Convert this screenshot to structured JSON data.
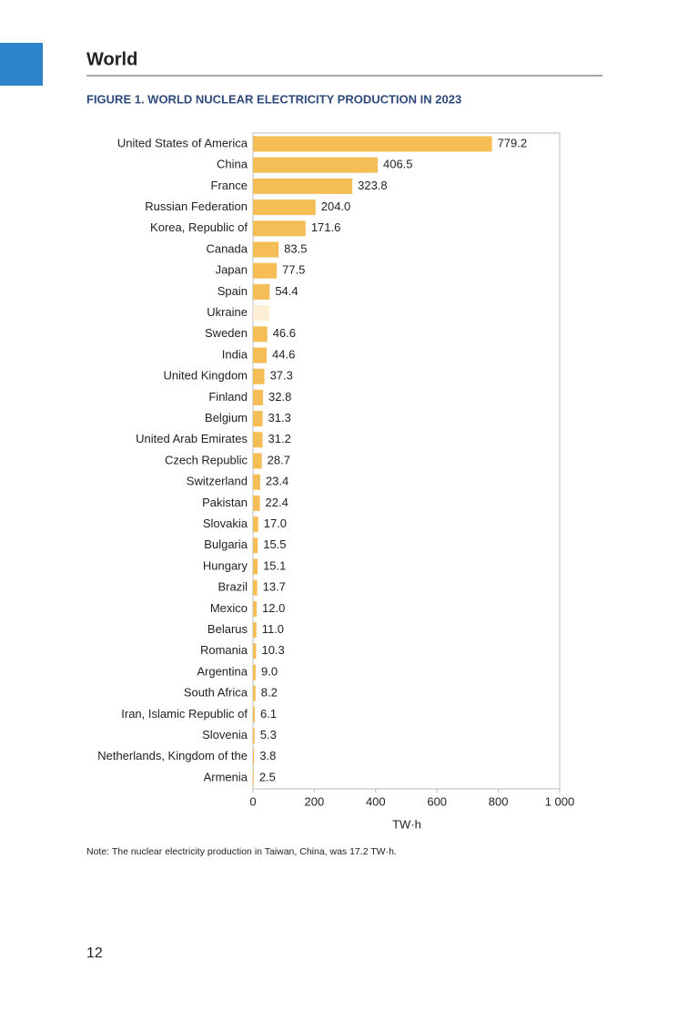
{
  "header": {
    "title": "World"
  },
  "chart_data": {
    "type": "bar",
    "orientation": "horizontal",
    "title": "FIGURE 1. WORLD NUCLEAR ELECTRICITY PRODUCTION IN 2023",
    "categories": [
      "United States of America",
      "China",
      "France",
      "Russian Federation",
      "Korea, Republic of",
      "Canada",
      "Japan",
      "Spain",
      "Ukraine",
      "Sweden",
      "India",
      "United Kingdom",
      "Finland",
      "Belgium",
      "United Arab Emirates",
      "Czech Republic",
      "Switzerland",
      "Pakistan",
      "Slovakia",
      "Bulgaria",
      "Hungary",
      "Brazil",
      "Mexico",
      "Belarus",
      "Romania",
      "Argentina",
      "South Africa",
      "Iran, Islamic Republic of",
      "Slovenia",
      "Netherlands, Kingdom of the",
      "Armenia"
    ],
    "values": [
      779.2,
      406.5,
      323.8,
      204.0,
      171.6,
      83.5,
      77.5,
      54.4,
      53,
      46.6,
      44.6,
      37.3,
      32.8,
      31.3,
      31.2,
      28.7,
      23.4,
      22.4,
      17.0,
      15.5,
      15.1,
      13.7,
      12.0,
      11.0,
      10.3,
      9.0,
      8.2,
      6.1,
      5.3,
      3.8,
      2.5
    ],
    "value_labels": [
      "779.2",
      "406.5",
      "323.8",
      "204.0",
      "171.6",
      "83.5",
      "77.5",
      "54.4",
      null,
      "46.6",
      "44.6",
      "37.3",
      "32.8",
      "31.3",
      "31.2",
      "28.7",
      "23.4",
      "22.4",
      "17.0",
      "15.5",
      "15.1",
      "13.7",
      "12.0",
      "11.0",
      "10.3",
      "9.0",
      "8.2",
      "6.1",
      "5.3",
      "3.8",
      "2.5"
    ],
    "colors": [
      "#f5bd55",
      "#f5bd55",
      "#f5bd55",
      "#f5bd55",
      "#f5bd55",
      "#f5bd55",
      "#f5bd55",
      "#f5bd55",
      "#fcefd5",
      "#f5bd55",
      "#f5bd55",
      "#f5bd55",
      "#f5bd55",
      "#f5bd55",
      "#f5bd55",
      "#f5bd55",
      "#f5bd55",
      "#f5bd55",
      "#f5bd55",
      "#f5bd55",
      "#f5bd55",
      "#f5bd55",
      "#f5bd55",
      "#f5bd55",
      "#f5bd55",
      "#f5bd55",
      "#f5bd55",
      "#f5bd55",
      "#f5bd55",
      "#f5bd55",
      "#f5bd55"
    ],
    "xlim": [
      0,
      1000
    ],
    "xticks": [
      0,
      200,
      400,
      600,
      800,
      {
        "value": 1000,
        "label": "1 000"
      }
    ],
    "x_label": "TW·h"
  },
  "note": "Note: The nuclear electricity production in Taiwan, China, was 17.2 TW·h.",
  "page_number": "12"
}
